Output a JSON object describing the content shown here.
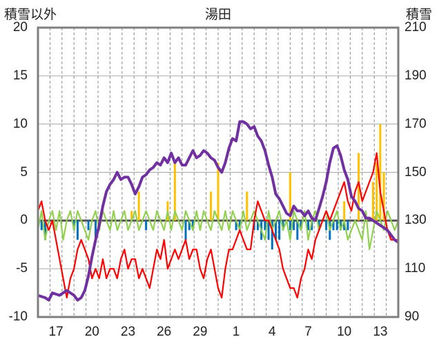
{
  "chart_data": {
    "type": "line",
    "title": "湯田",
    "ylabel_left": "積雪以外",
    "ylabel_right": "積雪",
    "ylim_left": [
      -10,
      20
    ],
    "ylim_right": [
      90,
      210
    ],
    "yticks_left": [
      "20",
      "15",
      "10",
      "5",
      "0",
      "-5",
      "-10"
    ],
    "yticks_right": [
      "210",
      "190",
      "170",
      "150",
      "130",
      "110",
      "90"
    ],
    "xlim": [
      0,
      100
    ],
    "xticks": [
      {
        "x": 5,
        "label": "17"
      },
      {
        "x": 15,
        "label": "20"
      },
      {
        "x": 25,
        "label": "23"
      },
      {
        "x": 35,
        "label": "26"
      },
      {
        "x": 45,
        "label": "29"
      },
      {
        "x": 55,
        "label": "1"
      },
      {
        "x": 65,
        "label": "4"
      },
      {
        "x": 75,
        "label": "7"
      },
      {
        "x": 85,
        "label": "10"
      },
      {
        "x": 95,
        "label": "13"
      }
    ],
    "grid": true,
    "colors": {
      "snow_depth": "#7030a0",
      "red_series": "#ff0000",
      "light_green_series": "#92d050",
      "blue_bars": "#0070c0",
      "orange_bars": "#ffc000"
    },
    "series": [
      {
        "axis": "right",
        "color": "#7030a0",
        "x": [
          0,
          2,
          3,
          4,
          6,
          8,
          10,
          11,
          12,
          13,
          14,
          15,
          16,
          17,
          18,
          19,
          20,
          21,
          22,
          23,
          24,
          25,
          26,
          27,
          28,
          29,
          30,
          31,
          32,
          33,
          34,
          35,
          36,
          37,
          38,
          39,
          40,
          41,
          42,
          43,
          44,
          45,
          46,
          47,
          48,
          49,
          50,
          51,
          52,
          53,
          54,
          55,
          56,
          57,
          58,
          59,
          60,
          61,
          62,
          63,
          64,
          65,
          66,
          67,
          68,
          69,
          70,
          71,
          72,
          73,
          74,
          75,
          76,
          77,
          78,
          79,
          80,
          81,
          82,
          83,
          84,
          85,
          86,
          87,
          88,
          89,
          90,
          91,
          92,
          93,
          94,
          95,
          96,
          97,
          98,
          99,
          100
        ],
        "values": [
          99,
          98,
          97,
          100,
          99,
          101,
          99,
          97,
          98,
          101,
          107,
          115,
          122,
          128,
          136,
          142,
          145,
          147,
          150,
          147,
          148,
          148,
          145,
          141,
          144,
          148,
          149,
          151,
          152,
          154,
          153,
          156,
          154,
          158,
          154,
          156,
          153,
          153,
          156,
          159,
          156,
          157,
          159,
          158,
          156,
          155,
          152,
          150,
          154,
          160,
          164,
          163,
          171,
          171,
          170,
          168,
          169,
          165,
          163,
          159,
          153,
          148,
          141,
          139,
          136,
          133,
          132,
          136,
          134,
          134,
          132,
          134,
          131,
          130,
          135,
          140,
          146,
          154,
          160,
          161,
          157,
          151,
          147,
          140,
          138,
          135,
          134,
          131,
          131,
          130,
          129,
          128,
          127,
          126,
          124,
          122,
          121
        ]
      },
      {
        "axis": "left",
        "color": "#ff0000",
        "x": [
          0,
          1,
          2,
          3,
          4,
          5,
          6,
          7,
          8,
          9,
          10,
          11,
          12,
          13,
          14,
          15,
          16,
          17,
          18,
          19,
          20,
          21,
          22,
          23,
          24,
          25,
          26,
          27,
          28,
          29,
          30,
          31,
          32,
          33,
          34,
          35,
          36,
          37,
          38,
          39,
          40,
          41,
          42,
          43,
          44,
          45,
          46,
          47,
          48,
          49,
          50,
          51,
          52,
          53,
          54,
          55,
          56,
          57,
          58,
          59,
          60,
          61,
          62,
          63,
          64,
          65,
          66,
          67,
          68,
          69,
          70,
          71,
          72,
          73,
          74,
          75,
          76,
          77,
          78,
          79,
          80,
          81,
          82,
          83,
          84,
          85,
          86,
          87,
          88,
          89,
          90,
          91,
          92,
          93,
          94,
          95,
          96,
          97,
          98,
          99,
          100
        ],
        "values": [
          1,
          2,
          0,
          -1,
          0,
          -2,
          -4,
          -6,
          -8,
          -6,
          -5,
          -3,
          -2,
          -3,
          -4,
          -6,
          -5,
          -6,
          -4,
          -6,
          -5,
          -5,
          -6,
          -4,
          -3,
          -5,
          -4,
          -4,
          -6,
          -5,
          -6,
          -7,
          -5,
          -3,
          -4,
          -2,
          -5,
          -4,
          -3,
          -4,
          -3,
          -2,
          -4,
          -3,
          -3,
          -5,
          -6,
          -4,
          -3,
          -5,
          -7,
          -8,
          -5,
          -3,
          -3,
          -2,
          -1,
          -2,
          -3,
          -3,
          0,
          2,
          1,
          0,
          0,
          -1,
          -2,
          -3,
          -5,
          -6,
          -7,
          -7,
          -8,
          -6,
          -5,
          -3,
          -4,
          -2,
          -1,
          0,
          1,
          0,
          1,
          2,
          3,
          4,
          2,
          1,
          3,
          4,
          2,
          3,
          4,
          5,
          7,
          3,
          1,
          -1,
          -2,
          -2,
          -2
        ]
      },
      {
        "axis": "left",
        "color": "#92d050",
        "x": [
          0,
          1,
          2,
          3,
          4,
          5,
          6,
          7,
          8,
          9,
          10,
          11,
          12,
          13,
          14,
          15,
          16,
          17,
          18,
          19,
          20,
          21,
          22,
          23,
          24,
          25,
          26,
          27,
          28,
          29,
          30,
          31,
          32,
          33,
          34,
          35,
          36,
          37,
          38,
          39,
          40,
          41,
          42,
          43,
          44,
          45,
          46,
          47,
          48,
          49,
          50,
          51,
          52,
          53,
          54,
          55,
          56,
          57,
          58,
          59,
          60,
          61,
          62,
          63,
          64,
          65,
          66,
          67,
          68,
          69,
          70,
          71,
          72,
          73,
          74,
          75,
          76,
          77,
          78,
          79,
          80,
          81,
          82,
          83,
          84,
          85,
          86,
          87,
          88,
          89,
          90,
          91,
          92,
          93,
          94,
          95,
          96,
          97,
          98,
          99,
          100
        ],
        "values": [
          -1,
          1,
          -2,
          0,
          1,
          -1,
          1,
          -2,
          0,
          1,
          -1,
          1,
          0,
          -1,
          -2,
          0,
          1,
          -1,
          1,
          0,
          -1,
          1,
          -1,
          0,
          1,
          -1,
          0,
          1,
          -1,
          0,
          1,
          0,
          -1,
          1,
          0,
          -1,
          1,
          -1,
          1,
          0,
          -1,
          1,
          0,
          -1,
          1,
          -1,
          1,
          0,
          -1,
          1,
          0,
          -1,
          1,
          -1,
          1,
          0,
          -1,
          1,
          -1,
          0,
          1,
          0,
          -1,
          -2,
          1,
          -1,
          0,
          1,
          -1,
          0,
          -2,
          1,
          0,
          -1,
          1,
          -2,
          0,
          1,
          -1,
          0,
          1,
          -1,
          0,
          1,
          -1,
          0,
          -2,
          -1,
          0,
          -1,
          -2,
          1,
          -3,
          -1,
          1,
          0,
          -1,
          1,
          0,
          -1,
          0
        ]
      }
    ],
    "bars": [
      {
        "axis": "left",
        "color": "#ffc000",
        "x": [
          26,
          28,
          36,
          38,
          48,
          50,
          58,
          70,
          85,
          89,
          93,
          94,
          95,
          96
        ],
        "values": [
          1,
          3,
          2,
          6,
          3,
          6,
          3,
          5,
          2,
          7,
          4,
          6,
          10,
          5
        ]
      },
      {
        "axis": "left",
        "color": "#0070c0",
        "x": [
          1,
          2,
          10,
          11,
          14,
          16,
          17,
          30,
          41,
          42,
          43,
          55,
          56,
          60,
          61,
          62,
          63,
          64,
          65,
          66,
          67,
          68,
          70,
          71,
          72,
          73,
          75,
          76,
          78,
          80,
          81,
          82,
          83,
          84,
          85,
          86
        ],
        "values": [
          -1,
          -2,
          -1,
          -2,
          -1,
          -2,
          -1,
          -1,
          -2,
          -1,
          -1,
          -1,
          -1,
          -1,
          -1,
          -2,
          -1,
          -2,
          -3,
          -2,
          -2,
          -1,
          -1,
          -1,
          -2,
          -1,
          -1,
          -1,
          -1,
          -1,
          -2,
          -1,
          -1,
          -1,
          -1,
          -1
        ]
      }
    ]
  }
}
